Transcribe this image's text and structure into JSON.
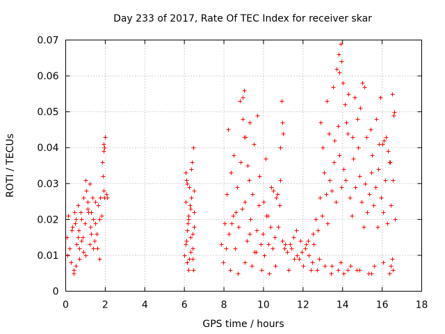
{
  "chart_data": {
    "type": "scatter",
    "title": "Day 233 of 2017, Rate Of TEC Index for receiver skar",
    "xlabel": "GPS time / hours",
    "ylabel": "ROTI / TECUs",
    "xlim": [
      0,
      18
    ],
    "ylim": [
      0,
      0.07
    ],
    "xticks": [
      0,
      2,
      4,
      6,
      8,
      10,
      12,
      14,
      16,
      18
    ],
    "yticks": [
      0,
      0.01,
      0.02,
      0.03,
      0.04,
      0.05,
      0.06,
      0.07
    ],
    "xtick_labels": [
      "0",
      "2",
      "4",
      "6",
      "8",
      "10",
      "12",
      "14",
      "16",
      "18"
    ],
    "ytick_labels": [
      "0",
      "0.01",
      "0.02",
      "0.03",
      "0.04",
      "0.05",
      "0.06",
      "0.07"
    ],
    "grid": true,
    "marker": "+",
    "color": "#ff0000",
    "series": [
      {
        "name": "ROTI",
        "x": [
          0.05,
          0.12,
          0.2,
          0.28,
          0.35,
          0.4,
          0.45,
          0.5,
          0.55,
          0.6,
          0.65,
          0.7,
          0.75,
          0.8,
          0.85,
          0.9,
          0.95,
          1.0,
          1.05,
          1.1,
          1.15,
          1.2,
          1.25,
          1.3,
          1.35,
          1.4,
          1.45,
          1.5,
          1.55,
          1.6,
          1.65,
          1.7,
          1.75,
          1.8,
          1.85,
          1.9,
          1.95,
          2.0,
          2.05,
          2.1,
          0.1,
          0.3,
          0.5,
          0.7,
          0.9,
          1.1,
          1.3,
          1.5,
          1.7,
          1.9,
          1.88,
          1.92,
          1.96,
          0.6,
          0.8,
          1.0,
          1.2,
          1.4,
          0.42,
          0.48,
          6.0,
          6.05,
          6.1,
          6.15,
          6.2,
          6.25,
          6.3,
          6.35,
          6.4,
          6.45,
          6.5,
          6.1,
          6.2,
          6.3,
          6.4,
          6.5,
          6.15,
          6.25,
          6.35,
          6.45,
          6.05,
          6.22,
          6.38,
          6.48,
          6.12,
          6.32,
          6.42,
          6.28,
          6.18,
          6.08,
          7.85,
          7.95,
          8.05,
          8.15,
          8.25,
          8.35,
          8.45,
          8.55,
          8.65,
          8.75,
          8.85,
          8.95,
          9.05,
          9.15,
          9.25,
          9.35,
          9.45,
          9.55,
          9.65,
          9.75,
          9.85,
          9.95,
          10.05,
          10.15,
          10.25,
          10.35,
          10.45,
          10.55,
          10.65,
          10.75,
          10.85,
          10.95,
          11.05,
          8.2,
          8.5,
          8.8,
          8.95,
          9.0,
          9.1,
          9.2,
          9.3,
          9.5,
          9.8,
          10.1,
          10.4,
          10.7,
          10.9,
          10.95,
          11.0,
          8.3,
          8.7,
          9.05,
          9.4,
          9.6,
          9.9,
          10.3,
          10.6,
          10.85,
          8.1,
          8.6,
          9.0,
          9.7,
          10.0,
          10.5,
          10.8,
          8.4,
          8.9,
          9.3,
          10.2,
          11.1,
          11.25,
          11.4,
          11.55,
          11.7,
          11.85,
          12.0,
          12.15,
          12.3,
          12.45,
          11.2,
          11.5,
          11.8,
          12.1,
          12.4,
          11.35,
          11.65,
          11.95,
          12.25,
          12.5,
          12.55,
          12.65,
          12.75,
          12.85,
          12.95,
          13.05,
          13.15,
          13.25,
          13.35,
          13.45,
          13.55,
          13.65,
          13.75,
          13.85,
          13.95,
          14.05,
          14.15,
          14.25,
          14.35,
          14.45,
          14.55,
          14.65,
          14.75,
          14.85,
          14.95,
          15.05,
          15.15,
          15.25,
          15.35,
          15.45,
          15.55,
          15.65,
          15.75,
          15.85,
          15.95,
          16.05,
          16.15,
          16.25,
          16.35,
          16.45,
          16.55,
          16.65,
          12.9,
          13.2,
          13.5,
          13.7,
          13.8,
          13.9,
          13.95,
          14.0,
          14.1,
          14.3,
          14.6,
          14.9,
          15.0,
          15.1,
          15.4,
          15.7,
          15.9,
          16.1,
          16.3,
          16.5,
          16.6,
          13.0,
          13.3,
          13.6,
          13.85,
          14.2,
          14.5,
          14.8,
          15.2,
          15.5,
          15.8,
          16.0,
          16.2,
          16.4,
          16.58,
          12.7,
          13.1,
          13.4,
          13.75,
          14.05,
          14.4,
          14.7,
          15.3,
          15.6,
          16.35,
          16.45,
          16.55,
          12.8,
          13.45,
          13.92,
          14.25,
          14.85,
          15.45,
          16.05,
          16.52
        ],
        "y": [
          0.015,
          0.021,
          0.012,
          0.008,
          0.018,
          0.005,
          0.022,
          0.02,
          0.013,
          0.024,
          0.017,
          0.009,
          0.022,
          0.02,
          0.015,
          0.026,
          0.019,
          0.031,
          0.028,
          0.025,
          0.022,
          0.03,
          0.018,
          0.022,
          0.026,
          0.02,
          0.014,
          0.019,
          0.016,
          0.012,
          0.024,
          0.009,
          0.026,
          0.021,
          0.036,
          0.041,
          0.04,
          0.043,
          0.027,
          0.026,
          0.01,
          0.017,
          0.007,
          0.012,
          0.011,
          0.023,
          0.016,
          0.025,
          0.02,
          0.028,
          0.032,
          0.039,
          0.026,
          0.015,
          0.014,
          0.01,
          0.013,
          0.012,
          0.006,
          0.019,
          0.01,
          0.025,
          0.031,
          0.008,
          0.021,
          0.029,
          0.015,
          0.034,
          0.009,
          0.04,
          0.018,
          0.014,
          0.006,
          0.023,
          0.012,
          0.028,
          0.017,
          0.009,
          0.026,
          0.006,
          0.013,
          0.02,
          0.036,
          0.022,
          0.03,
          0.011,
          0.016,
          0.024,
          0.019,
          0.033,
          0.013,
          0.008,
          0.019,
          0.027,
          0.016,
          0.033,
          0.021,
          0.012,
          0.029,
          0.018,
          0.036,
          0.054,
          0.025,
          0.014,
          0.031,
          0.02,
          0.027,
          0.011,
          0.017,
          0.024,
          0.013,
          0.016,
          0.01,
          0.021,
          0.013,
          0.018,
          0.012,
          0.015,
          0.026,
          0.018,
          0.031,
          0.014,
          0.012,
          0.045,
          0.038,
          0.053,
          0.048,
          0.056,
          0.043,
          0.035,
          0.047,
          0.041,
          0.032,
          0.037,
          0.029,
          0.027,
          0.053,
          0.047,
          0.044,
          0.006,
          0.005,
          0.008,
          0.007,
          0.011,
          0.006,
          0.005,
          0.007,
          0.04,
          0.012,
          0.022,
          0.043,
          0.049,
          0.025,
          0.028,
          0.024,
          0.019,
          0.023,
          0.016,
          0.021,
          0.013,
          0.006,
          0.012,
          0.009,
          0.01,
          0.014,
          0.007,
          0.013,
          0.01,
          0.008,
          0.011,
          0.015,
          0.009,
          0.012,
          0.006,
          0.013,
          0.017,
          0.011,
          0.014,
          0.016,
          0.013,
          0.02,
          0.017,
          0.026,
          0.021,
          0.033,
          0.027,
          0.019,
          0.031,
          0.028,
          0.036,
          0.025,
          0.046,
          0.038,
          0.029,
          0.034,
          0.031,
          0.044,
          0.026,
          0.021,
          0.037,
          0.029,
          0.048,
          0.032,
          0.025,
          0.018,
          0.03,
          0.022,
          0.027,
          0.033,
          0.024,
          0.029,
          0.018,
          0.041,
          0.026,
          0.022,
          0.031,
          0.019,
          0.036,
          0.024,
          0.031,
          0.02,
          0.047,
          0.053,
          0.057,
          0.062,
          0.066,
          0.069,
          0.064,
          0.058,
          0.052,
          0.055,
          0.054,
          0.051,
          0.058,
          0.057,
          0.045,
          0.048,
          0.054,
          0.042,
          0.039,
          0.055,
          0.05,
          0.04,
          0.044,
          0.042,
          0.061,
          0.047,
          0.043,
          0.04,
          0.043,
          0.038,
          0.034,
          0.041,
          0.043,
          0.036,
          0.049,
          0.006,
          0.007,
          0.005,
          0.006,
          0.005,
          0.007,
          0.006,
          0.005,
          0.007,
          0.005,
          0.007,
          0.006,
          0.009,
          0.007,
          0.008,
          0.006,
          0.006,
          0.005,
          0.008,
          0.009
        ]
      }
    ]
  }
}
